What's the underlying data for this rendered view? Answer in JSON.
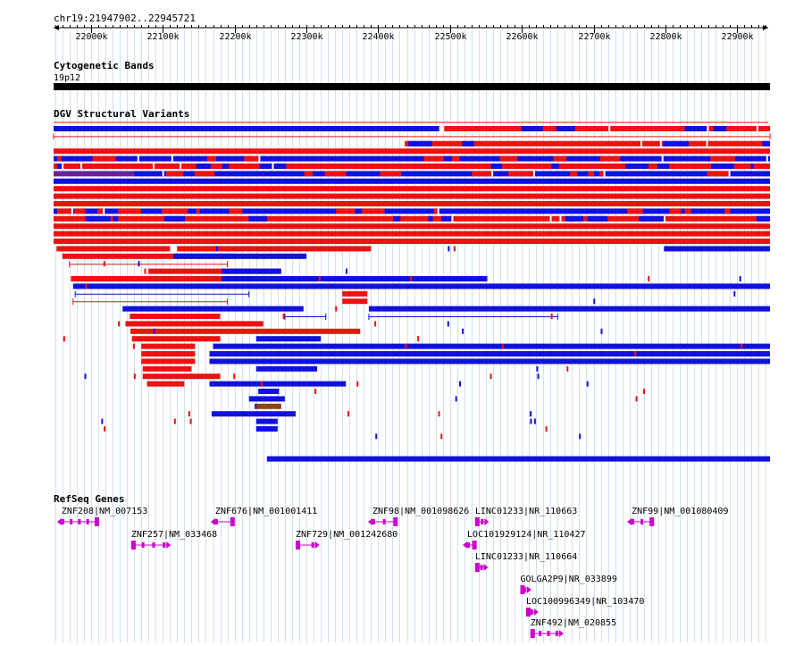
{
  "landmark": "chr19:21947902..22945721",
  "ruler": {
    "start": 21947902,
    "end": 22945721,
    "ticks": [
      {
        "pos": 22000000,
        "label": "22000k"
      },
      {
        "pos": 22100000,
        "label": "22100k"
      },
      {
        "pos": 22200000,
        "label": "22200k"
      },
      {
        "pos": 22300000,
        "label": "22300k"
      },
      {
        "pos": 22400000,
        "label": "22400k"
      },
      {
        "pos": 22500000,
        "label": "22500k"
      },
      {
        "pos": 22600000,
        "label": "22600k"
      },
      {
        "pos": 22700000,
        "label": "22700k"
      },
      {
        "pos": 22800000,
        "label": "22800k"
      },
      {
        "pos": 22900000,
        "label": "22900k"
      }
    ]
  },
  "tracks": {
    "cytoband": {
      "title": "Cytogenetic Bands",
      "band_label": "19p12",
      "band": {
        "start": 21947902,
        "end": 22945721
      }
    },
    "dgv": {
      "title": "DGV Structural Variants",
      "colors": {
        "loss": "#ee1111",
        "gain": "#1111dd",
        "both": "#662299",
        "inversion": "#8b4513",
        "complex": "#aa5522"
      },
      "variants": [
        {
          "row": 0,
          "start": 21947902,
          "end": 22485000,
          "type": "gain"
        },
        {
          "row": 0,
          "start": 22492000,
          "end": 22945721,
          "type": "loss",
          "note": "dense mixed"
        },
        {
          "row": 1,
          "start": 21947902,
          "end": 22945721,
          "type": "loss",
          "thin": true
        },
        {
          "row": 2,
          "start": 22437000,
          "end": 22945721,
          "type": "loss",
          "note": "dense mixed"
        },
        {
          "row": 3,
          "start": 21947902,
          "end": 22945721,
          "type": "loss"
        },
        {
          "row": 4,
          "start": 21947902,
          "end": 22945721,
          "type": "gain",
          "note": "dense mixed"
        },
        {
          "row": 5,
          "start": 21947902,
          "end": 22945721,
          "type": "loss",
          "note": "dense mixed"
        },
        {
          "row": 6,
          "start": 21947902,
          "end": 22060000,
          "type": "both"
        },
        {
          "row": 6,
          "start": 22060000,
          "end": 22945721,
          "type": "gain",
          "note": "dense mixed"
        },
        {
          "row": 7,
          "start": 21947902,
          "end": 22945721,
          "type": "gain"
        },
        {
          "row": 8,
          "start": 21947902,
          "end": 22945721,
          "type": "loss"
        },
        {
          "row": 9,
          "start": 21947902,
          "end": 22945721,
          "type": "loss"
        },
        {
          "row": 10,
          "start": 21947902,
          "end": 22945721,
          "type": "loss"
        },
        {
          "row": 11,
          "start": 21947902,
          "end": 22945721,
          "type": "gain",
          "note": "dense mixed"
        },
        {
          "row": 12,
          "start": 21947902,
          "end": 22945721,
          "type": "loss",
          "note": "dense mixed"
        },
        {
          "row": 13,
          "start": 21947902,
          "end": 22945721,
          "type": "loss"
        },
        {
          "row": 14,
          "start": 21947902,
          "end": 22945721,
          "type": "loss"
        },
        {
          "row": 15,
          "start": 21947902,
          "end": 22945721,
          "type": "loss"
        },
        {
          "row": 16,
          "start": 21952000,
          "end": 22110000,
          "type": "loss"
        },
        {
          "row": 16,
          "start": 22120000,
          "end": 22390000,
          "type": "loss"
        },
        {
          "row": 16,
          "start": 22798000,
          "end": 22945721,
          "type": "gain"
        },
        {
          "row": 17,
          "start": 21960000,
          "end": 22200000,
          "type": "loss"
        },
        {
          "row": 17,
          "start": 22115000,
          "end": 22300000,
          "type": "gain"
        },
        {
          "row": 18,
          "start": 21970000,
          "end": 22190000,
          "type": "loss",
          "thin": true
        },
        {
          "row": 19,
          "start": 22080000,
          "end": 22260000,
          "type": "loss"
        },
        {
          "row": 19,
          "start": 22182000,
          "end": 22265000,
          "type": "gain"
        },
        {
          "row": 20,
          "start": 21972000,
          "end": 22515000,
          "type": "loss"
        },
        {
          "row": 20,
          "start": 22182000,
          "end": 22552000,
          "type": "gain"
        },
        {
          "row": 21,
          "start": 21975000,
          "end": 22945721,
          "type": "gain"
        },
        {
          "row": 22,
          "start": 21978000,
          "end": 22220000,
          "type": "gain",
          "thin": true
        },
        {
          "row": 22,
          "start": 22350000,
          "end": 22385000,
          "type": "loss"
        },
        {
          "row": 23,
          "start": 21975000,
          "end": 22190000,
          "type": "loss",
          "thin": true
        },
        {
          "row": 23,
          "start": 22350000,
          "end": 22385000,
          "type": "loss"
        },
        {
          "row": 24,
          "start": 22044000,
          "end": 22296000,
          "type": "gain"
        },
        {
          "row": 24,
          "start": 22387000,
          "end": 22945721,
          "type": "gain"
        },
        {
          "row": 25,
          "start": 22054000,
          "end": 22180000,
          "type": "loss"
        },
        {
          "row": 25,
          "start": 22270000,
          "end": 22327000,
          "type": "gain",
          "thin": true
        },
        {
          "row": 25,
          "start": 22387000,
          "end": 22650000,
          "type": "gain",
          "thin": true
        },
        {
          "row": 26,
          "start": 22048000,
          "end": 22240000,
          "type": "loss"
        },
        {
          "row": 27,
          "start": 22055000,
          "end": 22375000,
          "type": "loss"
        },
        {
          "row": 28,
          "start": 22057000,
          "end": 22180000,
          "type": "loss"
        },
        {
          "row": 28,
          "start": 22230000,
          "end": 22320000,
          "type": "gain"
        },
        {
          "row": 29,
          "start": 22070000,
          "end": 22145000,
          "type": "loss"
        },
        {
          "row": 29,
          "start": 22170000,
          "end": 22945721,
          "type": "gain"
        },
        {
          "row": 30,
          "start": 22070000,
          "end": 22145000,
          "type": "loss"
        },
        {
          "row": 30,
          "start": 22165000,
          "end": 22945721,
          "type": "gain"
        },
        {
          "row": 31,
          "start": 22070000,
          "end": 22145000,
          "type": "loss"
        },
        {
          "row": 31,
          "start": 22165000,
          "end": 22945721,
          "type": "gain"
        },
        {
          "row": 32,
          "start": 22072000,
          "end": 22140000,
          "type": "loss"
        },
        {
          "row": 32,
          "start": 22230000,
          "end": 22315000,
          "type": "gain"
        },
        {
          "row": 33,
          "start": 22072000,
          "end": 22180000,
          "type": "loss"
        },
        {
          "row": 34,
          "start": 22078000,
          "end": 22130000,
          "type": "loss"
        },
        {
          "row": 34,
          "start": 22165000,
          "end": 22355000,
          "type": "gain"
        },
        {
          "row": 35,
          "start": 22233000,
          "end": 22262000,
          "type": "gain"
        },
        {
          "row": 36,
          "start": 22220000,
          "end": 22270000,
          "type": "gain"
        },
        {
          "row": 37,
          "start": 22230000,
          "end": 22265000,
          "type": "inversion"
        },
        {
          "row": 38,
          "start": 22168000,
          "end": 22285000,
          "type": "gain"
        },
        {
          "row": 39,
          "start": 22230000,
          "end": 22260000,
          "type": "gain"
        },
        {
          "row": 40,
          "start": 22230000,
          "end": 22260000,
          "type": "gain"
        },
        {
          "row": 44,
          "start": 22245000,
          "end": 22945721,
          "type": "gain"
        }
      ]
    },
    "refseq": {
      "title": "RefSeq Genes",
      "color": "#cc00cc",
      "genes": [
        {
          "label": "ZNF208|NM_007153",
          "start": 21959000,
          "end": 22010000,
          "strand": "-"
        },
        {
          "label": "ZNF257|NM_033468",
          "start": 22056000,
          "end": 22105000,
          "strand": "+"
        },
        {
          "label": "ZNF676|NM_001001411",
          "start": 22173000,
          "end": 22199000,
          "strand": "-"
        },
        {
          "label": "ZNF729|NM_001242680",
          "start": 22285000,
          "end": 22312000,
          "strand": "+"
        },
        {
          "label": "ZNF98|NM_001098626",
          "start": 22392000,
          "end": 22426000,
          "strand": "-"
        },
        {
          "label": "LINC01233|NR_110663",
          "start": 22535000,
          "end": 22548000,
          "strand": "+"
        },
        {
          "label": "LOC101929124|NR_110427",
          "start": 22524000,
          "end": 22536000,
          "strand": "-"
        },
        {
          "label": "LINC01233|NR_110664",
          "start": 22535000,
          "end": 22547000,
          "strand": "+"
        },
        {
          "label": "GOLGA2P9|NR_033899",
          "start": 22598000,
          "end": 22607000,
          "strand": "+"
        },
        {
          "label": "LOC100996349|NR_103470",
          "start": 22606000,
          "end": 22617000,
          "strand": "+"
        },
        {
          "label": "ZNF492|NM_020855",
          "start": 22612000,
          "end": 22652000,
          "strand": "+"
        },
        {
          "label": "ZNF99|NM_001080409",
          "start": 22753000,
          "end": 22783000,
          "strand": "-"
        }
      ]
    }
  }
}
